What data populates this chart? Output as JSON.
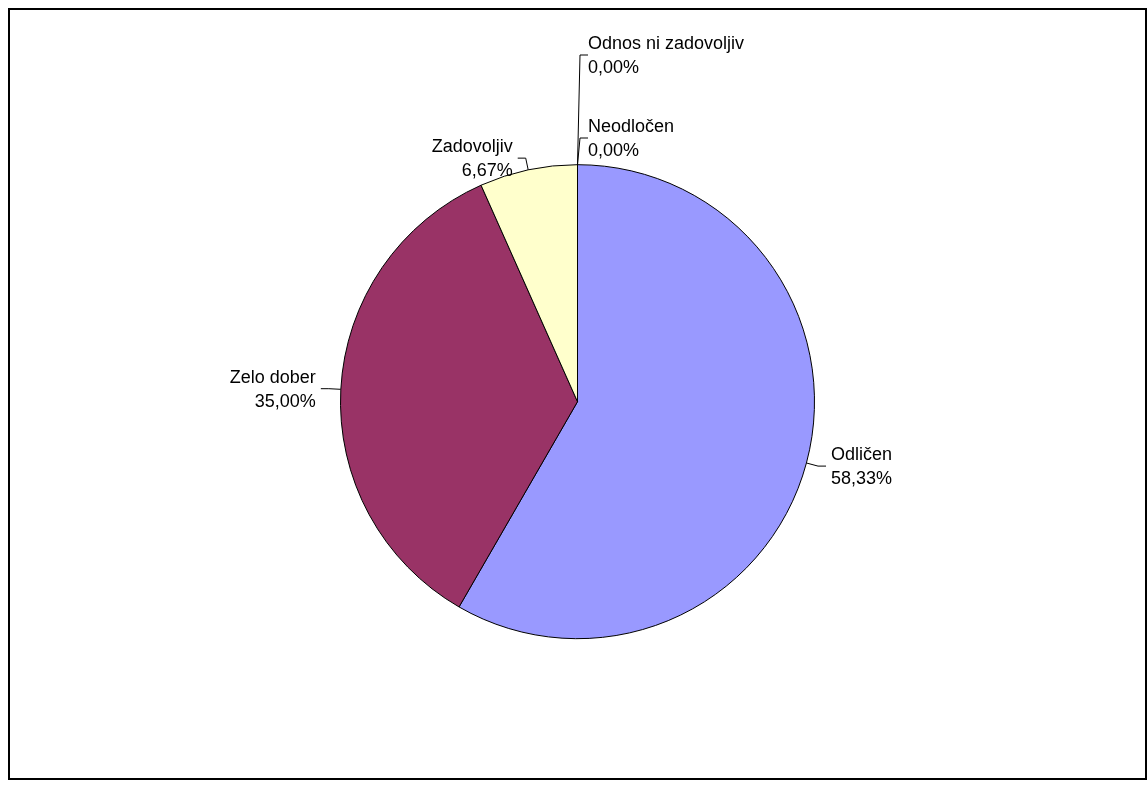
{
  "chart_data": {
    "type": "pie",
    "categories": [
      "Odličen",
      "Zelo dober",
      "Zadovoljiv",
      "Odnos ni zadovoljiv",
      "Neodločen"
    ],
    "values": [
      58.33,
      35.0,
      6.67,
      0,
      0
    ],
    "colors": [
      "#9999ff",
      "#993366",
      "#ffffcc",
      "#ccffff",
      "#660066"
    ],
    "value_labels": [
      "58,33%",
      "35,00%",
      "6,67%",
      "0,00%",
      "0,00%"
    ],
    "legend": false
  }
}
